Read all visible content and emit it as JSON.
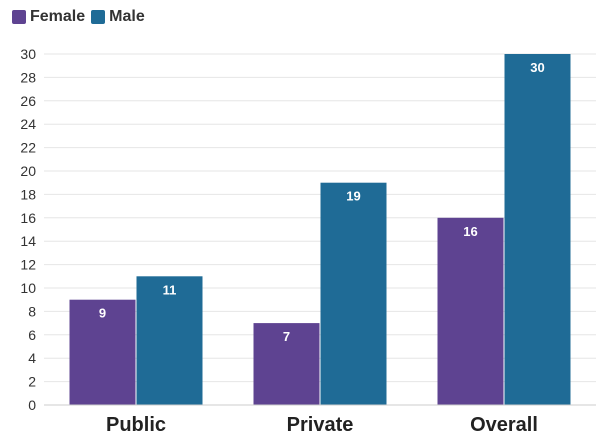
{
  "chart_data": {
    "type": "bar",
    "categories": [
      "Public",
      "Private",
      "Overall"
    ],
    "series": [
      {
        "name": "Female",
        "color": "#5e4391",
        "values": [
          9,
          7,
          16
        ]
      },
      {
        "name": "Male",
        "color": "#1f6b96",
        "values": [
          11,
          19,
          30
        ]
      }
    ],
    "yticks": [
      "0",
      "2",
      "4",
      "6",
      "8",
      "10",
      "12",
      "14",
      "16",
      "18",
      "20",
      "22",
      "24",
      "26",
      "28",
      "30"
    ],
    "ylim": [
      0,
      30
    ],
    "grid": true,
    "legend": "top-left"
  }
}
